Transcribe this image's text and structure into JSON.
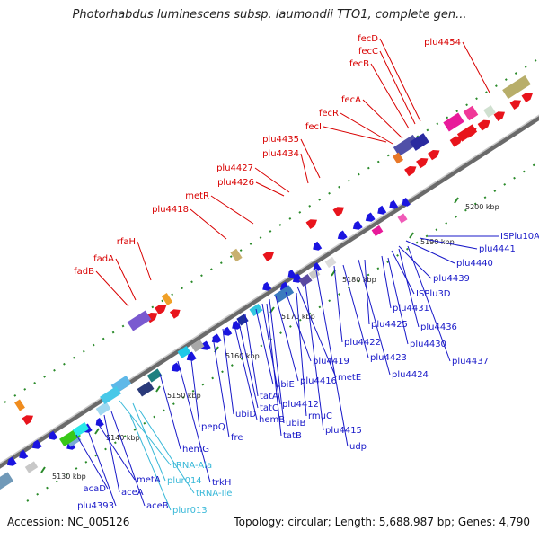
{
  "title": "Photorhabdus luminescens subsp. laumondii TTO1, complete gen...",
  "accession": "Accession: NC_005126",
  "meta": "Topology: circular; Length: 5,688,987 bp; Genes: 4,790",
  "ticks": [
    "5130 kbp",
    "5140 kbp",
    "5150 kbp",
    "5160 kbp",
    "5170 kbp",
    "5180 kbp",
    "5190 kbp",
    "5200 kbp"
  ],
  "labels_red": [
    "fecD",
    "fecC",
    "fecB",
    "plu4454",
    "fecA",
    "fecR",
    "fecI",
    "plu4435",
    "plu4434",
    "plu4427",
    "plu4426",
    "metR",
    "plu4418",
    "rfaH",
    "fadA",
    "fadB"
  ],
  "labels_blue": [
    "ISPlu10A",
    "plu4441",
    "plu4440",
    "plu4439",
    "ISPlu3D",
    "plu4431",
    "plu4436",
    "plu4425",
    "plu4430",
    "plu4422",
    "plu4437",
    "plu4423",
    "plu4424",
    "plu4419",
    "metE",
    "ubiE",
    "plu4416",
    "tatA",
    "plu4412",
    "tatC",
    "ubiB",
    "rmuC",
    "hemB",
    "plu4415",
    "ubiD",
    "tatB",
    "udp",
    "pepQ",
    "fre",
    "hemG",
    "trkH",
    "metA",
    "acaD",
    "plu4393",
    "aceA",
    "aceB"
  ],
  "labels_cyan": [
    "tRNA-Ala",
    "plur014",
    "tRNA-Ile",
    "plur013"
  ],
  "colors": {
    "forward": "#e8141c",
    "reverse": "#1a14e0",
    "rna": "#3cbede",
    "backbone": "#888888",
    "tick": "#2a8a2a"
  }
}
